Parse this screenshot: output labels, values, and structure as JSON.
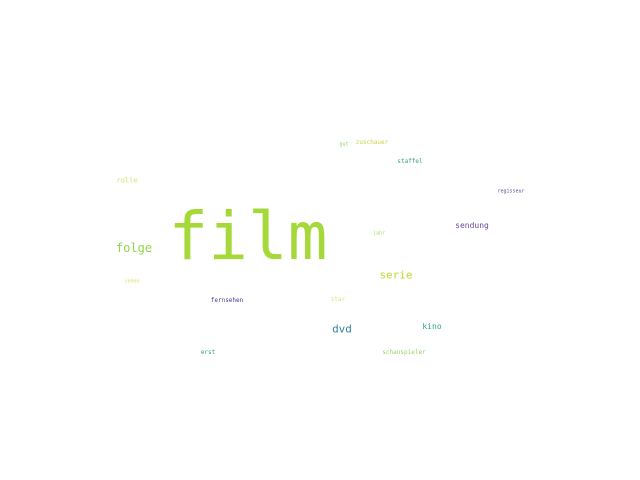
{
  "word_cloud": {
    "words": [
      {
        "text": "film",
        "color": "#a5d93a"
      },
      {
        "text": "folge",
        "color": "#8fd64a"
      },
      {
        "text": "serie",
        "color": "#bcd92f"
      },
      {
        "text": "dvd",
        "color": "#3b82a0"
      },
      {
        "text": "sendung",
        "color": "#6a4aa0"
      },
      {
        "text": "kino",
        "color": "#2aa08e"
      },
      {
        "text": "zuschauer",
        "color": "#c9d54a"
      },
      {
        "text": "gut",
        "color": "#8fd06a"
      },
      {
        "text": "staffel",
        "color": "#3aa08c"
      },
      {
        "text": "rolle",
        "color": "#d8e070"
      },
      {
        "text": "regisseur",
        "color": "#5a4a9a"
      },
      {
        "text": "jahr",
        "color": "#a8d86a"
      },
      {
        "text": "sehen",
        "color": "#e0e070"
      },
      {
        "text": "fernsehen",
        "color": "#4a3a8a"
      },
      {
        "text": "star",
        "color": "#e0e080"
      },
      {
        "text": "erst",
        "color": "#30a080"
      },
      {
        "text": "schauspieler",
        "color": "#9ad068"
      }
    ]
  }
}
